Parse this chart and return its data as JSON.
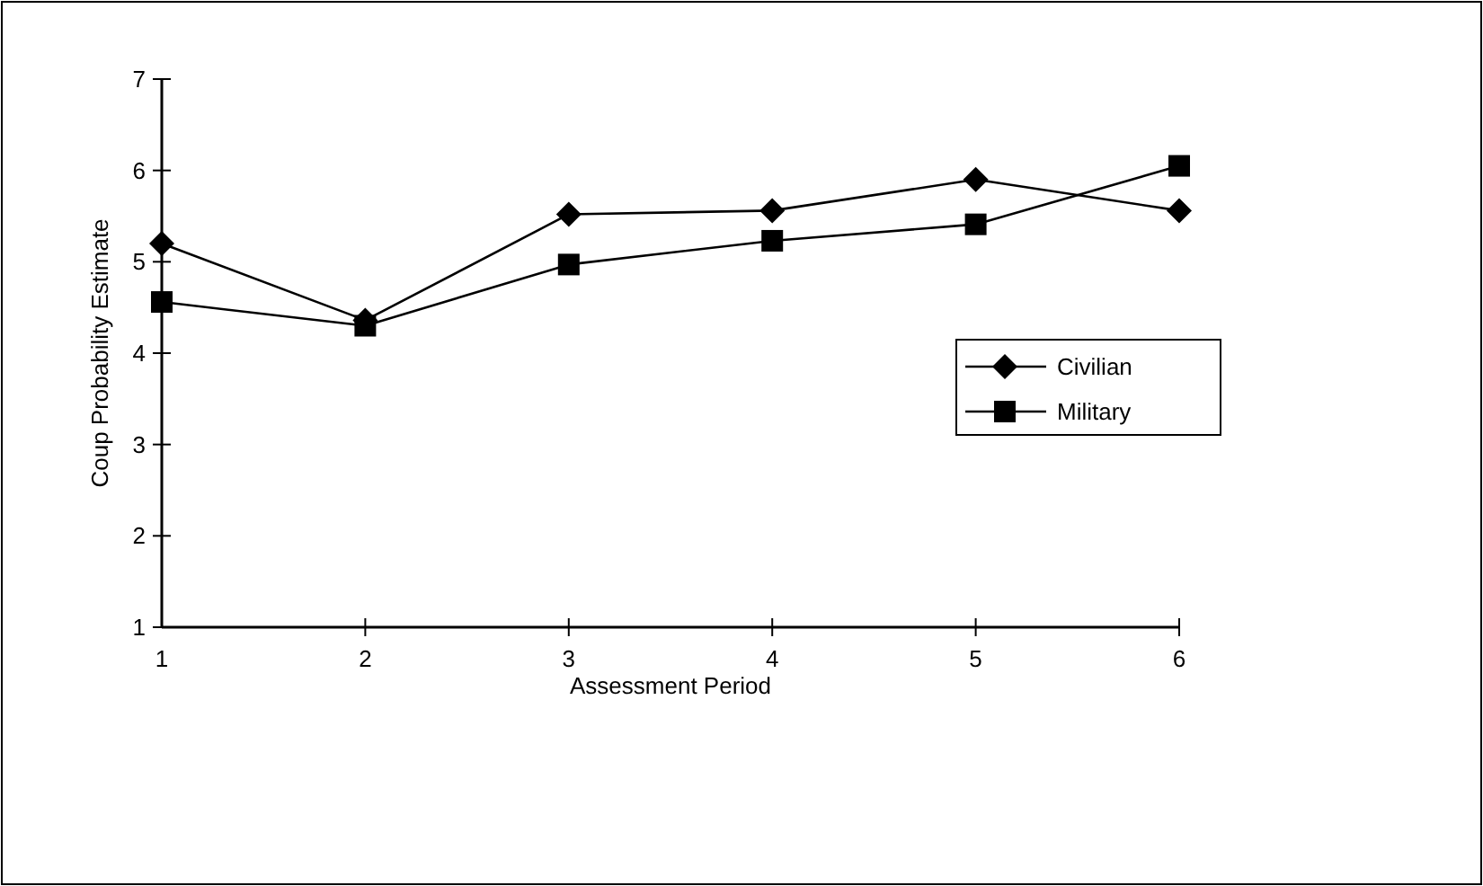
{
  "chart_data": {
    "type": "line",
    "xlabel": "Assessment Period",
    "ylabel": "Coup Probability Estimate",
    "x": [
      1,
      2,
      3,
      4,
      5,
      6
    ],
    "xlim": [
      1,
      6
    ],
    "xticks": [
      1,
      2,
      3,
      4,
      5,
      6
    ],
    "ylim": [
      1,
      7
    ],
    "yticks": [
      1,
      2,
      3,
      4,
      5,
      6,
      7
    ],
    "series": [
      {
        "name": "Civilian",
        "color": "#000000",
        "marker": "diamond",
        "values": [
          5.2,
          4.36,
          5.52,
          5.56,
          5.9,
          5.56
        ]
      },
      {
        "name": "Military",
        "color": "#000000",
        "marker": "square",
        "values": [
          4.56,
          4.3,
          4.97,
          5.23,
          5.41,
          6.05
        ]
      }
    ],
    "legend": "right",
    "grid": false
  }
}
